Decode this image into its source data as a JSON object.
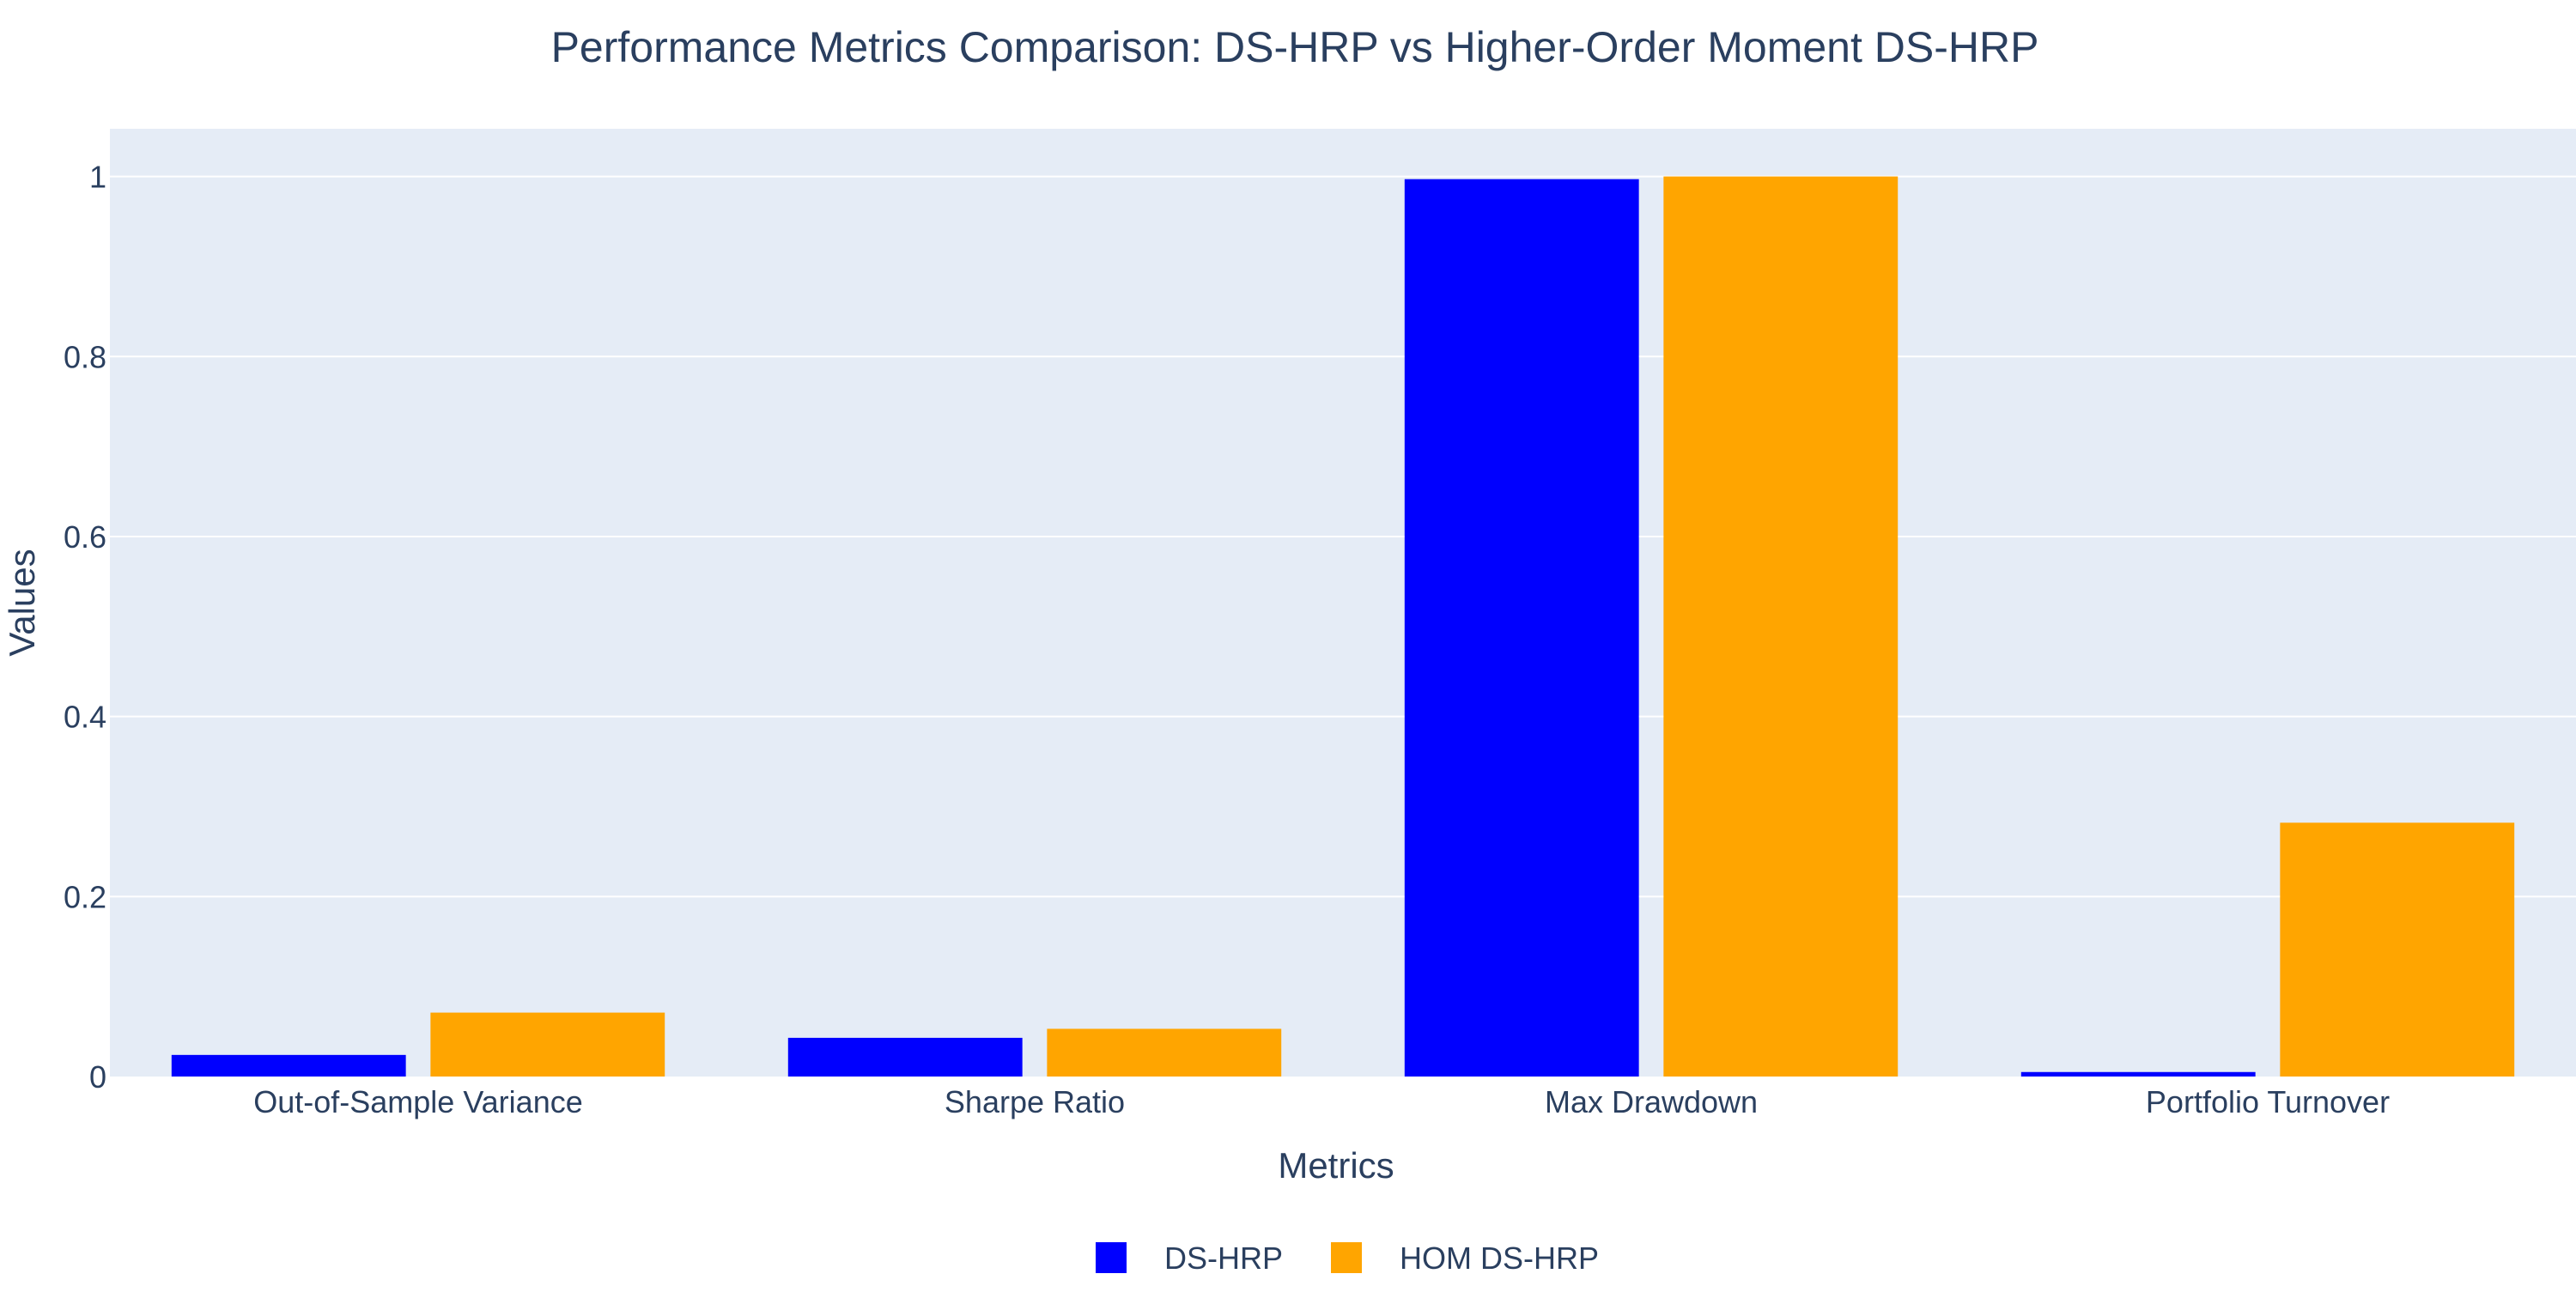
{
  "chart_data": {
    "type": "bar",
    "title": "Performance Metrics Comparison: DS-HRP vs Higher-Order Moment DS-HRP",
    "xlabel": "Metrics",
    "ylabel": "Values",
    "categories": [
      "Out-of-Sample Variance",
      "Sharpe Ratio",
      "Max Drawdown",
      "Portfolio Turnover"
    ],
    "series": [
      {
        "name": "DS-HRP",
        "color": "#0000ff",
        "values": [
          0.024,
          0.043,
          0.997,
          0.005
        ]
      },
      {
        "name": "HOM DS-HRP",
        "color": "#ffa500",
        "values": [
          0.071,
          0.053,
          1.0,
          0.282
        ]
      }
    ],
    "ylim": [
      0,
      1.053
    ],
    "yticks": [
      0,
      0.2,
      0.4,
      0.6,
      0.8,
      1
    ],
    "ytick_labels": [
      "0",
      "0.2",
      "0.4",
      "0.6",
      "0.8",
      "1"
    ],
    "grid": true,
    "legend_position": "bottom-center",
    "plot_background": "#e5ecf6",
    "text_color": "#2a3f5f"
  }
}
